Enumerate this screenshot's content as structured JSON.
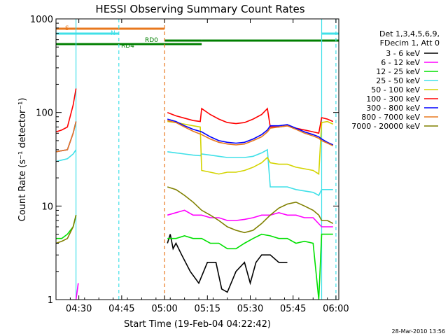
{
  "chart_data": {
    "type": "line",
    "title": "HESSI Observing Summary Count Rates",
    "xlabel": "Start Time (19-Feb-04 04:22:42)",
    "ylabel": "Count Rate (s⁻¹ detector⁻¹)",
    "yscale": "log",
    "ylim": [
      1,
      1000
    ],
    "xlim_minutes_from_0422": [
      0,
      99
    ],
    "x_tick_labels": [
      "04:30",
      "04:45",
      "05:00",
      "05:15",
      "05:30",
      "05:45",
      "06:00"
    ],
    "x_tick_minutes_from_0422": [
      8,
      23,
      38,
      53,
      68,
      83,
      98
    ],
    "y_tick_labels": [
      "1",
      "10",
      "100",
      "1000"
    ],
    "y_tick_values": [
      1,
      10,
      100,
      1000
    ],
    "legend_position": "right",
    "legend_header": [
      "Det 1,3,4,5,6,9,",
      "FDecim 1, Att 0"
    ],
    "footer_date": "28-Mar-2010 13:56",
    "flags": [
      {
        "label": "S",
        "color": "#e8781e",
        "segments": [
          [
            0,
            38
          ]
        ]
      },
      {
        "label": "N",
        "color": "#40e0e8",
        "segments": [
          [
            0,
            22
          ],
          [
            93,
            99
          ]
        ]
      },
      {
        "label": "RD0",
        "color": "#007f00",
        "segments": [
          [
            38,
            51
          ],
          [
            51,
            93
          ],
          [
            93,
            99
          ]
        ]
      },
      {
        "label": "RD4",
        "color": "#007f00",
        "segments": [
          [
            0,
            38
          ],
          [
            38,
            51
          ]
        ]
      }
    ],
    "vertical_markers": [
      {
        "x": 7,
        "color": "#40e0e8",
        "style": "solid"
      },
      {
        "x": 22,
        "color": "#40e0e8",
        "style": "dashed"
      },
      {
        "x": 38,
        "color": "#e8781e",
        "style": "dashed"
      },
      {
        "x": 93,
        "color": "#40e0e8",
        "style": "solid"
      },
      {
        "x": 98,
        "color": "#40e0e8",
        "style": "dashed"
      }
    ],
    "series": [
      {
        "name": "3 - 6 keV",
        "color": "#000000",
        "points": [
          [
            39,
            4
          ],
          [
            40,
            5
          ],
          [
            41,
            3.5
          ],
          [
            42,
            4
          ],
          [
            44,
            3
          ],
          [
            47,
            2
          ],
          [
            50,
            1.5
          ],
          [
            53,
            2.5
          ],
          [
            56,
            2.5
          ],
          [
            58,
            1.3
          ],
          [
            60,
            1.2
          ],
          [
            63,
            2
          ],
          [
            66,
            2.5
          ],
          [
            68,
            1.5
          ],
          [
            70,
            2.5
          ],
          [
            72,
            3
          ],
          [
            75,
            3
          ],
          [
            78,
            2.5
          ],
          [
            81,
            2.5
          ]
        ]
      },
      {
        "name": "6 - 12 keV",
        "color": "#ff00ff",
        "points": [
          [
            7,
            1
          ],
          [
            7.8,
            1.5
          ],
          [
            39,
            8
          ],
          [
            42,
            8.5
          ],
          [
            45,
            9
          ],
          [
            48,
            8
          ],
          [
            51,
            8
          ],
          [
            54,
            7.5
          ],
          [
            57,
            7.5
          ],
          [
            60,
            7
          ],
          [
            63,
            7
          ],
          [
            66,
            7.2
          ],
          [
            69,
            7.5
          ],
          [
            72,
            8
          ],
          [
            75,
            8
          ],
          [
            78,
            8.5
          ],
          [
            81,
            8
          ],
          [
            84,
            8
          ],
          [
            87,
            7.5
          ],
          [
            90,
            7.5
          ],
          [
            93,
            6
          ],
          [
            95,
            6
          ],
          [
            97,
            6
          ]
        ]
      },
      {
        "name": "12 - 25 keV",
        "color": "#00e000",
        "points": [
          [
            0,
            4.5
          ],
          [
            2,
            4.5
          ],
          [
            4,
            5
          ],
          [
            6,
            6
          ],
          [
            7,
            8
          ],
          [
            39,
            4.5
          ],
          [
            42,
            4.5
          ],
          [
            45,
            4.8
          ],
          [
            48,
            4.5
          ],
          [
            51,
            4.5
          ],
          [
            54,
            4
          ],
          [
            57,
            4
          ],
          [
            60,
            3.5
          ],
          [
            63,
            3.5
          ],
          [
            66,
            4
          ],
          [
            69,
            4.5
          ],
          [
            72,
            5
          ],
          [
            75,
            4.8
          ],
          [
            78,
            4.5
          ],
          [
            81,
            4.5
          ],
          [
            84,
            4
          ],
          [
            87,
            4.2
          ],
          [
            90,
            4
          ],
          [
            92,
            1
          ],
          [
            93,
            5
          ],
          [
            95,
            5
          ],
          [
            97,
            5
          ]
        ]
      },
      {
        "name": "25 - 50 keV",
        "color": "#40e0e8",
        "points": [
          [
            0,
            30
          ],
          [
            2,
            31
          ],
          [
            4,
            32
          ],
          [
            6,
            36
          ],
          [
            7,
            40
          ],
          [
            39,
            38
          ],
          [
            42,
            37
          ],
          [
            45,
            36
          ],
          [
            48,
            35
          ],
          [
            50.5,
            34.5
          ],
          [
            51,
            36
          ],
          [
            54,
            35
          ],
          [
            57,
            34
          ],
          [
            60,
            33
          ],
          [
            63,
            33
          ],
          [
            66,
            33
          ],
          [
            69,
            34
          ],
          [
            72,
            37
          ],
          [
            74,
            40
          ],
          [
            75,
            16
          ],
          [
            78,
            16
          ],
          [
            81,
            16
          ],
          [
            84,
            15
          ],
          [
            87,
            14.5
          ],
          [
            90,
            14
          ],
          [
            92,
            13
          ],
          [
            93,
            15
          ],
          [
            95,
            15
          ],
          [
            97,
            15
          ]
        ]
      },
      {
        "name": "50 - 100 keV",
        "color": "#d4d400",
        "points": [
          [
            39,
            80
          ],
          [
            42,
            78
          ],
          [
            45,
            75
          ],
          [
            48,
            72
          ],
          [
            50.5,
            70
          ],
          [
            51,
            24
          ],
          [
            54,
            23
          ],
          [
            57,
            22
          ],
          [
            60,
            23
          ],
          [
            63,
            23
          ],
          [
            66,
            24
          ],
          [
            69,
            26
          ],
          [
            72,
            29
          ],
          [
            74,
            33
          ],
          [
            75,
            29
          ],
          [
            78,
            28
          ],
          [
            81,
            28
          ],
          [
            84,
            26
          ],
          [
            87,
            25
          ],
          [
            90,
            24
          ],
          [
            92,
            22
          ],
          [
            93,
            78
          ],
          [
            95,
            80
          ],
          [
            97,
            75
          ]
        ]
      },
      {
        "name": "100 - 300 keV",
        "color": "#ff0000",
        "points": [
          [
            0,
            62
          ],
          [
            2,
            65
          ],
          [
            4,
            70
          ],
          [
            6,
            120
          ],
          [
            7,
            180
          ],
          [
            39,
            100
          ],
          [
            42,
            92
          ],
          [
            45,
            87
          ],
          [
            48,
            82
          ],
          [
            50.5,
            80
          ],
          [
            51,
            110
          ],
          [
            54,
            95
          ],
          [
            57,
            85
          ],
          [
            60,
            78
          ],
          [
            63,
            76
          ],
          [
            66,
            78
          ],
          [
            69,
            85
          ],
          [
            72,
            95
          ],
          [
            74,
            110
          ],
          [
            75,
            70
          ],
          [
            78,
            70
          ],
          [
            81,
            72
          ],
          [
            84,
            68
          ],
          [
            87,
            65
          ],
          [
            90,
            62
          ],
          [
            92,
            60
          ],
          [
            93,
            88
          ],
          [
            95,
            85
          ],
          [
            97,
            80
          ]
        ]
      },
      {
        "name": "300 - 800 keV",
        "color": "#0000ff",
        "points": [
          [
            0,
            38
          ],
          [
            2,
            39
          ],
          [
            4,
            40
          ],
          [
            6,
            60
          ],
          [
            7,
            80
          ],
          [
            39,
            85
          ],
          [
            42,
            80
          ],
          [
            45,
            72
          ],
          [
            48,
            66
          ],
          [
            51,
            62
          ],
          [
            54,
            55
          ],
          [
            57,
            50
          ],
          [
            60,
            48
          ],
          [
            63,
            47
          ],
          [
            66,
            48
          ],
          [
            69,
            52
          ],
          [
            72,
            58
          ],
          [
            74,
            65
          ],
          [
            75,
            72
          ],
          [
            78,
            72
          ],
          [
            81,
            74
          ],
          [
            84,
            68
          ],
          [
            87,
            62
          ],
          [
            90,
            58
          ],
          [
            92,
            55
          ],
          [
            93,
            52
          ],
          [
            95,
            48
          ],
          [
            97,
            45
          ]
        ]
      },
      {
        "name": "800 - 7000 keV",
        "color": "#e8781e",
        "points": [
          [
            0,
            38
          ],
          [
            2,
            39
          ],
          [
            4,
            40
          ],
          [
            6,
            60
          ],
          [
            7,
            80
          ],
          [
            39,
            82
          ],
          [
            42,
            78
          ],
          [
            45,
            70
          ],
          [
            48,
            63
          ],
          [
            51,
            58
          ],
          [
            54,
            52
          ],
          [
            57,
            48
          ],
          [
            60,
            46
          ],
          [
            63,
            45
          ],
          [
            66,
            46
          ],
          [
            69,
            50
          ],
          [
            72,
            55
          ],
          [
            74,
            62
          ],
          [
            75,
            68
          ],
          [
            78,
            70
          ],
          [
            81,
            72
          ],
          [
            84,
            66
          ],
          [
            87,
            60
          ],
          [
            90,
            56
          ],
          [
            92,
            53
          ],
          [
            93,
            50
          ],
          [
            95,
            47
          ],
          [
            97,
            44
          ]
        ]
      },
      {
        "name": "7000 - 20000 keV",
        "color": "#808000",
        "points": [
          [
            0,
            4
          ],
          [
            2,
            4.2
          ],
          [
            4,
            4.5
          ],
          [
            6,
            6
          ],
          [
            7,
            8
          ],
          [
            39,
            16
          ],
          [
            42,
            15
          ],
          [
            45,
            13
          ],
          [
            48,
            11
          ],
          [
            51,
            9
          ],
          [
            54,
            8
          ],
          [
            57,
            7
          ],
          [
            60,
            6
          ],
          [
            63,
            5.5
          ],
          [
            66,
            5.2
          ],
          [
            69,
            5.5
          ],
          [
            72,
            6.5
          ],
          [
            75,
            8
          ],
          [
            78,
            9.5
          ],
          [
            81,
            10.5
          ],
          [
            84,
            11
          ],
          [
            87,
            10
          ],
          [
            90,
            9
          ],
          [
            92,
            8
          ],
          [
            93,
            7
          ],
          [
            95,
            7
          ],
          [
            97,
            6.5
          ]
        ]
      }
    ]
  }
}
